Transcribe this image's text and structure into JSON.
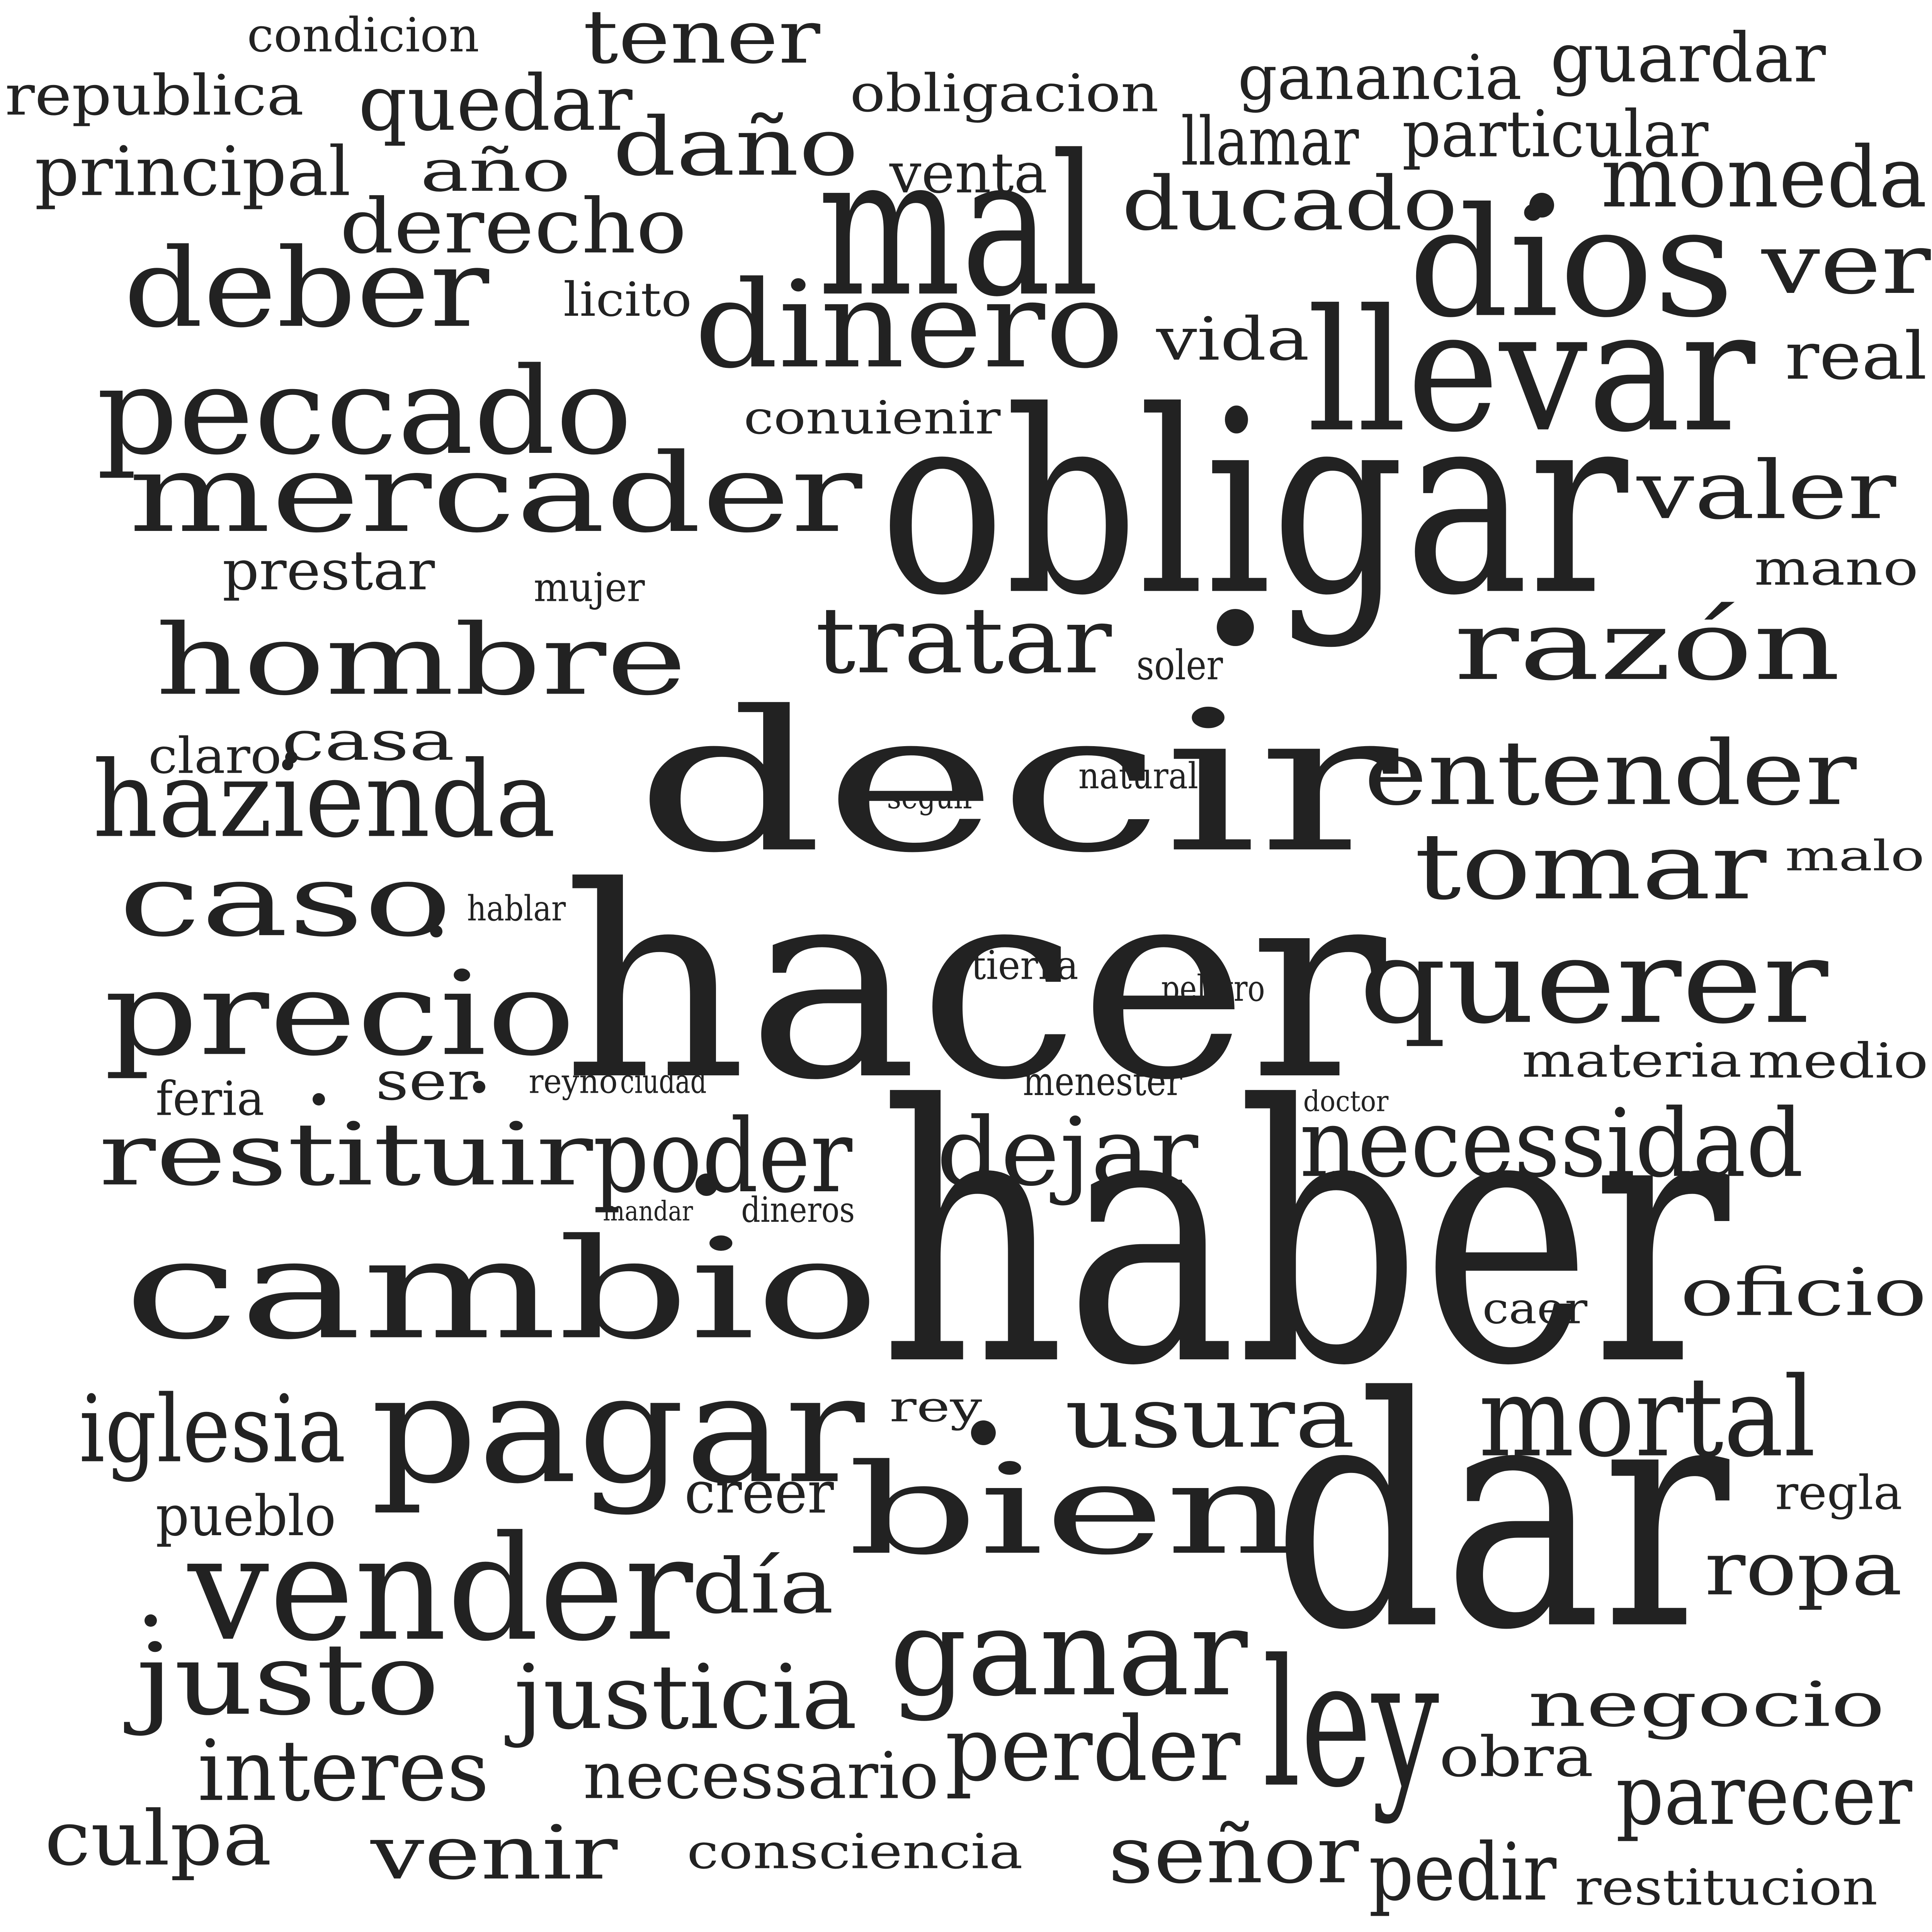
{
  "cloud": {
    "text_color": "#222222",
    "background": "#ffffff",
    "words": [
      {
        "text": "condicion"
      },
      {
        "text": "tener"
      },
      {
        "text": "republica"
      },
      {
        "text": "quedar"
      },
      {
        "text": "obligacion"
      },
      {
        "text": "ganancia"
      },
      {
        "text": "guardar"
      },
      {
        "text": "principal"
      },
      {
        "text": "año"
      },
      {
        "text": "daño"
      },
      {
        "text": "llamar"
      },
      {
        "text": "particular"
      },
      {
        "text": "venta"
      },
      {
        "text": "moneda"
      },
      {
        "text": "derecho"
      },
      {
        "text": "mal"
      },
      {
        "text": "ducado"
      },
      {
        "text": "deber"
      },
      {
        "text": "licito"
      },
      {
        "text": "dios"
      },
      {
        "text": "ver"
      },
      {
        "text": "dinero"
      },
      {
        "text": "vida"
      },
      {
        "text": "llevar"
      },
      {
        "text": "real"
      },
      {
        "text": "peccado"
      },
      {
        "text": "conuienir"
      },
      {
        "text": "mercader"
      },
      {
        "text": "obligar"
      },
      {
        "text": "valer"
      },
      {
        "text": "prestar"
      },
      {
        "text": "mujer"
      },
      {
        "text": "mano"
      },
      {
        "text": "hombre"
      },
      {
        "text": "tratar"
      },
      {
        "text": "razón"
      },
      {
        "text": "soler"
      },
      {
        "text": "claro"
      },
      {
        "text": "casa"
      },
      {
        "text": "decir"
      },
      {
        "text": "entender"
      },
      {
        "text": "hazienda"
      },
      {
        "text": "natural"
      },
      {
        "text": "seguir"
      },
      {
        "text": "tomar"
      },
      {
        "text": "malo"
      },
      {
        "text": "caso"
      },
      {
        "text": "hablar"
      },
      {
        "text": "hacer"
      },
      {
        "text": "precio"
      },
      {
        "text": "tierra"
      },
      {
        "text": "peligro"
      },
      {
        "text": "querer"
      },
      {
        "text": "materia"
      },
      {
        "text": "medio"
      },
      {
        "text": "feria"
      },
      {
        "text": "ser"
      },
      {
        "text": "reyno"
      },
      {
        "text": "ciudad"
      },
      {
        "text": "menester"
      },
      {
        "text": "doctor"
      },
      {
        "text": "restituir"
      },
      {
        "text": "poder"
      },
      {
        "text": "dejar"
      },
      {
        "text": "necessidad"
      },
      {
        "text": "mandar"
      },
      {
        "text": "dineros"
      },
      {
        "text": "cambio"
      },
      {
        "text": "haber"
      },
      {
        "text": "oficio"
      },
      {
        "text": "caer"
      },
      {
        "text": "iglesia"
      },
      {
        "text": "pagar"
      },
      {
        "text": "rey"
      },
      {
        "text": "usura"
      },
      {
        "text": "mortal"
      },
      {
        "text": "pueblo"
      },
      {
        "text": "creer"
      },
      {
        "text": "bien"
      },
      {
        "text": "regla"
      },
      {
        "text": "vender"
      },
      {
        "text": "día"
      },
      {
        "text": "dar"
      },
      {
        "text": "ropa"
      },
      {
        "text": "justo"
      },
      {
        "text": "ganar"
      },
      {
        "text": "justicia"
      },
      {
        "text": "ley"
      },
      {
        "text": "negocio"
      },
      {
        "text": "interes"
      },
      {
        "text": "necessario"
      },
      {
        "text": "perder"
      },
      {
        "text": "obra"
      },
      {
        "text": "culpa"
      },
      {
        "text": "parecer"
      },
      {
        "text": "venir"
      },
      {
        "text": "consciencia"
      },
      {
        "text": "señor"
      },
      {
        "text": "pedir"
      },
      {
        "text": "restitucion"
      }
    ]
  }
}
